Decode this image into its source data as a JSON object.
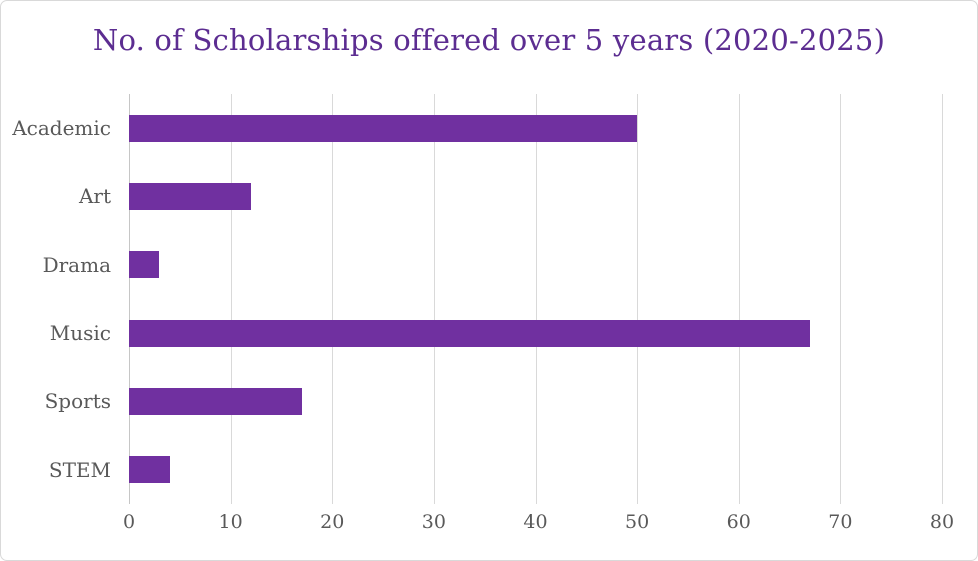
{
  "figure": {
    "title": "No. of Scholarships offered over 5 years (2020-2025)"
  },
  "chart_data": {
    "type": "bar",
    "orientation": "horizontal",
    "title": "No. of Scholarships offered over 5 years (2020-2025)",
    "categories": [
      "Academic",
      "Art",
      "Drama",
      "Music",
      "Sports",
      "STEM"
    ],
    "values": [
      50,
      12,
      3,
      67,
      17,
      4
    ],
    "xlabel": "",
    "ylabel": "",
    "xlim": [
      0,
      80
    ],
    "x_ticks": [
      0,
      10,
      20,
      30,
      40,
      50,
      60,
      70,
      80
    ],
    "grid": "vertical-gridlines-only",
    "legend": "none",
    "data_labels": "none",
    "colors": {
      "bar": "#7030A0",
      "title": "#5C2D91",
      "tick_label": "#595959",
      "category_label": "#595959",
      "gridline": "#D9D9D9",
      "axis_line": "#C6C6C6",
      "background": "#FFFFFF",
      "border": "#D9D9D9"
    }
  }
}
